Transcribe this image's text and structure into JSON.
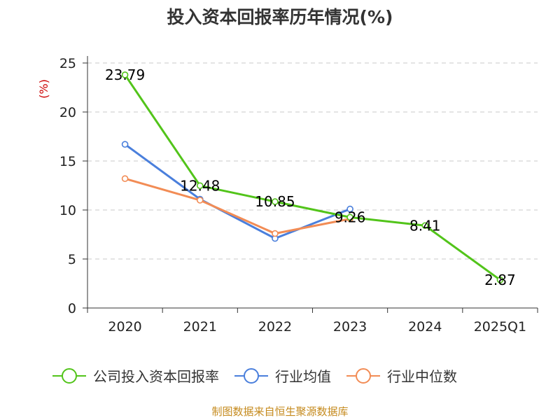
{
  "chart_data": {
    "type": "line",
    "title": "投入资本回报率历年情况(%)",
    "ylabel": "(%)",
    "categories": [
      "2020",
      "2021",
      "2022",
      "2023",
      "2024",
      "2025Q1"
    ],
    "ylim": [
      0,
      25
    ],
    "yticks": [
      0,
      5,
      10,
      15,
      20,
      25
    ],
    "grid": true,
    "legend_position": "bottom",
    "series": [
      {
        "name": "公司投入资本回报率",
        "color": "#52c41a",
        "values": [
          23.79,
          12.48,
          10.85,
          9.26,
          8.41,
          2.87
        ],
        "labels": [
          "23.79",
          "12.48",
          "10.85",
          "9.26",
          "8.41",
          "2.87"
        ]
      },
      {
        "name": "行业均值",
        "color": "#4a7fdc",
        "values": [
          16.7,
          11.1,
          7.1,
          10.1,
          null,
          null
        ]
      },
      {
        "name": "行业中位数",
        "color": "#f28c55",
        "values": [
          13.2,
          11.0,
          7.6,
          9.1,
          null,
          null
        ]
      }
    ],
    "source": "制图数据来自恒生聚源数据库"
  }
}
